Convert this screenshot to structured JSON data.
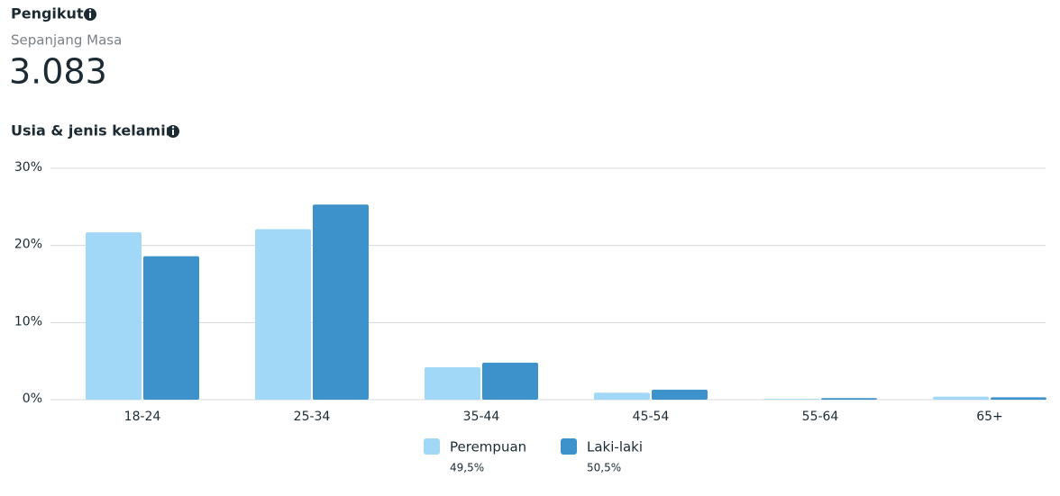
{
  "header": {
    "title": "Pengikut",
    "period": "Sepanjang Masa",
    "count": "3.083"
  },
  "chart_data": {
    "type": "bar",
    "title": "Usia & jenis kelamin",
    "categories": [
      "18-24",
      "25-34",
      "35-44",
      "45-54",
      "55-64",
      "65+"
    ],
    "series": [
      {
        "name": "Perempuan",
        "color": "#a2d8f7",
        "share": "49,5%",
        "values": [
          21.7,
          22.1,
          4.2,
          0.9,
          0.1,
          0.4
        ]
      },
      {
        "name": "Laki-laki",
        "color": "#3d92cc",
        "share": "50,5%",
        "values": [
          18.6,
          25.3,
          4.8,
          1.3,
          0.2,
          0.3
        ]
      }
    ],
    "ylim": [
      0,
      30
    ],
    "yticks": [
      {
        "value": 0,
        "label": "0%"
      },
      {
        "value": 10,
        "label": "10%"
      },
      {
        "value": 20,
        "label": "20%"
      },
      {
        "value": 30,
        "label": "30%"
      }
    ],
    "grid": true
  }
}
